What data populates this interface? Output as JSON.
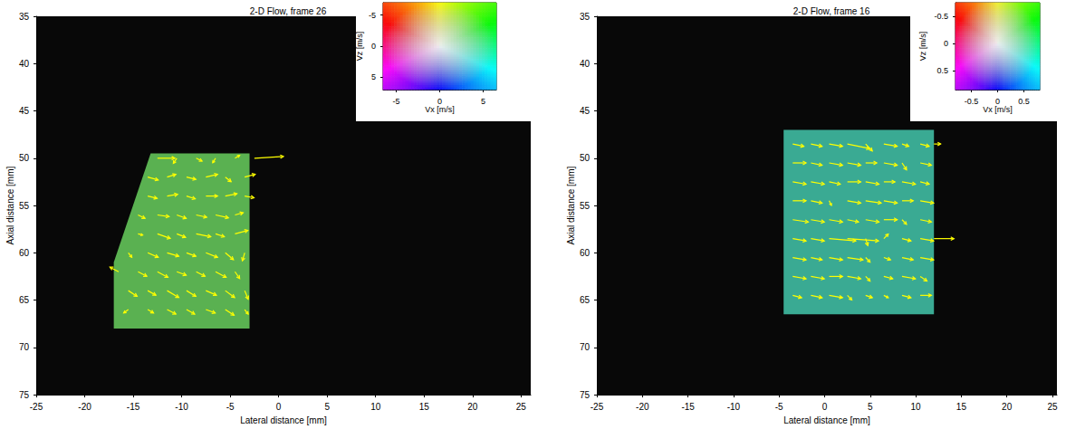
{
  "chart_data": [
    {
      "type": "vector_field",
      "title": "2-D Flow, frame 26",
      "x_label": "Lateral distance [mm]",
      "y_label": "Axial distance [mm]",
      "xlim": [
        -25,
        26
      ],
      "ylim": [
        35,
        75
      ],
      "xticks": [
        -25,
        -20,
        -15,
        -10,
        -5,
        0,
        5,
        10,
        15,
        20,
        25
      ],
      "yticks": [
        35,
        40,
        45,
        50,
        55,
        60,
        65,
        70,
        75
      ],
      "grid": false,
      "roi": {
        "x": [
          -13.2,
          -3,
          -3,
          -17,
          -17
        ],
        "z": [
          49.5,
          49.5,
          68,
          68,
          61
        ],
        "color": "#62c058"
      },
      "series": [
        {
          "type": "vector",
          "color": "#ffff00",
          "values": [
            [
              -12.5,
              50,
              3,
              0
            ],
            [
              -10.5,
              50,
              -0.6,
              0.9
            ],
            [
              -8.5,
              50,
              1,
              0.5
            ],
            [
              -6.5,
              50,
              -0.5,
              0.8
            ],
            [
              -4.5,
              50,
              0.8,
              -0.5
            ],
            [
              -2.5,
              50,
              5,
              -0.3
            ],
            [
              -13.5,
              52,
              1.8,
              0.5
            ],
            [
              -11.5,
              52,
              1.5,
              -0.5
            ],
            [
              -9.5,
              52,
              1.6,
              0.4
            ],
            [
              -7.5,
              52,
              2,
              -0.5
            ],
            [
              -5.5,
              52,
              1,
              0.8
            ],
            [
              -3.5,
              52,
              1.8,
              -0.5
            ],
            [
              -13.5,
              54,
              1.6,
              0.4
            ],
            [
              -11.5,
              54,
              1.8,
              -0.3
            ],
            [
              -9.5,
              54,
              1.5,
              0.5
            ],
            [
              -7.5,
              54,
              2,
              0
            ],
            [
              -5.5,
              54,
              2,
              -0.4
            ],
            [
              -3.5,
              54,
              1.6,
              0.3
            ],
            [
              -14.5,
              56,
              1.2,
              0.6
            ],
            [
              -12.5,
              56,
              2,
              0.3
            ],
            [
              -10.5,
              56,
              1.6,
              0.6
            ],
            [
              -8.5,
              56,
              1.8,
              0.4
            ],
            [
              -6.5,
              56,
              2.2,
              0.5
            ],
            [
              -4.5,
              56,
              1.4,
              -0.4
            ],
            [
              -14.5,
              58,
              0.8,
              0.2
            ],
            [
              -12.5,
              58,
              2.2,
              0.8
            ],
            [
              -10.5,
              58,
              1.5,
              0.6
            ],
            [
              -8.5,
              58,
              2.5,
              0.5
            ],
            [
              -6.5,
              58,
              1.5,
              0.5
            ],
            [
              -4.5,
              58,
              2.2,
              -0.6
            ],
            [
              -15.5,
              60,
              0.6,
              0.8
            ],
            [
              -13.5,
              60,
              1.8,
              0.8
            ],
            [
              -11.5,
              60,
              2,
              0.6
            ],
            [
              -9.5,
              60,
              1.6,
              0.6
            ],
            [
              -7.5,
              60,
              2,
              0.8
            ],
            [
              -5.5,
              60,
              1.4,
              1.2
            ],
            [
              -3.5,
              60,
              -0.4,
              1.4
            ],
            [
              -16.5,
              62,
              -1.5,
              -0.8
            ],
            [
              -14.5,
              62,
              1.5,
              0.8
            ],
            [
              -12.5,
              62,
              1.8,
              1
            ],
            [
              -10.5,
              62,
              1.6,
              0.6
            ],
            [
              -8.5,
              62,
              1.5,
              0.8
            ],
            [
              -6.5,
              62,
              1.8,
              1
            ],
            [
              -4.5,
              62,
              0.8,
              1.2
            ],
            [
              -15.5,
              64,
              1.5,
              1
            ],
            [
              -13.5,
              64,
              1.4,
              0.8
            ],
            [
              -11.5,
              64,
              2,
              1.2
            ],
            [
              -9.5,
              64,
              1.6,
              1
            ],
            [
              -7.5,
              64,
              1.8,
              0.8
            ],
            [
              -5.5,
              64,
              1.6,
              1.2
            ],
            [
              -3.5,
              64,
              0.6,
              1.5
            ],
            [
              -15.5,
              66,
              -0.8,
              0.6
            ],
            [
              -13.5,
              66,
              1,
              0.6
            ],
            [
              -11.5,
              66,
              1.5,
              0.8
            ],
            [
              -9.5,
              66,
              1.4,
              0.8
            ],
            [
              -7.5,
              66,
              1.6,
              0.6
            ],
            [
              -5.5,
              66,
              1.5,
              1
            ],
            [
              -3.5,
              66,
              0.6,
              0.8
            ]
          ]
        }
      ],
      "color_wheel": {
        "x_label": "Vx [m/s]",
        "y_label": "Vz [m/s]",
        "xlim": [
          -6.5,
          6.5
        ],
        "ylim": [
          -7,
          7
        ],
        "xticks": [
          -5,
          0,
          5
        ],
        "yticks": [
          -5,
          0,
          5
        ]
      }
    },
    {
      "type": "vector_field",
      "title": "2-D Flow, frame 16",
      "x_label": "Lateral distance [mm]",
      "y_label": "Axial distance [mm]",
      "xlim": [
        -25,
        25.5
      ],
      "ylim": [
        35,
        75
      ],
      "xticks": [
        -25,
        -20,
        -15,
        -10,
        -5,
        0,
        5,
        10,
        15,
        20,
        25
      ],
      "yticks": [
        35,
        40,
        45,
        50,
        55,
        60,
        65,
        70,
        75
      ],
      "grid": false,
      "roi": {
        "x": [
          -4.5,
          12,
          12,
          -4.5
        ],
        "z": [
          47,
          47,
          66.5,
          66.5
        ],
        "color": "#3fb8a0"
      },
      "series": [
        {
          "type": "vector",
          "color": "#ffff00",
          "values": [
            [
              -3.5,
              48.5,
              0.25,
              0.05
            ],
            [
              -1.5,
              48.5,
              0.25,
              0.05
            ],
            [
              0.5,
              48.5,
              0.3,
              0.05
            ],
            [
              2.5,
              48.5,
              0.5,
              0.1
            ],
            [
              4.5,
              48.5,
              0.15,
              0.15
            ],
            [
              6.5,
              48.5,
              0.3,
              0.05
            ],
            [
              8.5,
              48.5,
              0.15,
              0.05
            ],
            [
              10.5,
              48.5,
              0.2,
              0.05
            ],
            [
              12,
              48.5,
              0.15,
              0
            ],
            [
              -3.5,
              50.5,
              0.3,
              0
            ],
            [
              -1.5,
              50.5,
              0.25,
              0.05
            ],
            [
              0.5,
              50.5,
              0.3,
              0.05
            ],
            [
              2.5,
              50.5,
              0.3,
              0.05
            ],
            [
              4.5,
              50.5,
              0.25,
              0
            ],
            [
              6.5,
              50.5,
              0.3,
              0.05
            ],
            [
              8.5,
              50.5,
              0.1,
              0.15
            ],
            [
              10.5,
              50.5,
              0.25,
              0.05
            ],
            [
              -3.5,
              52.5,
              0.3,
              0.05
            ],
            [
              -1.5,
              52.5,
              0.3,
              0.05
            ],
            [
              0.5,
              52.5,
              0.25,
              0.05
            ],
            [
              2.5,
              52.5,
              0.3,
              0
            ],
            [
              4.5,
              52.5,
              0.3,
              0.05
            ],
            [
              6.5,
              52.5,
              0.25,
              0
            ],
            [
              8.5,
              52.5,
              0.3,
              0.05
            ],
            [
              10.5,
              52.5,
              0.2,
              0.05
            ],
            [
              -3.5,
              54.5,
              0.3,
              0
            ],
            [
              -1.5,
              54.5,
              0.25,
              0.05
            ],
            [
              0.5,
              54.5,
              0.05,
              0.1
            ],
            [
              2.5,
              54.5,
              0.3,
              0.05
            ],
            [
              4.5,
              54.5,
              0.35,
              0.05
            ],
            [
              6.5,
              54.5,
              0.3,
              0.05
            ],
            [
              8.5,
              54.5,
              0.25,
              0
            ],
            [
              10.5,
              54.5,
              0.3,
              0.05
            ],
            [
              -3.5,
              56.5,
              0.35,
              0.05
            ],
            [
              -1.5,
              56.5,
              0.3,
              0.05
            ],
            [
              0.5,
              56.5,
              0.3,
              0.05
            ],
            [
              2.5,
              56.5,
              0.25,
              0.05
            ],
            [
              4.5,
              56.5,
              0.3,
              0.05
            ],
            [
              6.5,
              56.5,
              0.3,
              0
            ],
            [
              8.5,
              56.5,
              0.1,
              0.1
            ],
            [
              10.5,
              56.5,
              0.25,
              0.05
            ],
            [
              -3.5,
              58.5,
              0.3,
              0.05
            ],
            [
              -1.5,
              58.5,
              0.3,
              0.05
            ],
            [
              0.5,
              58.5,
              0.6,
              0.05
            ],
            [
              2.5,
              58.5,
              0.7,
              0.05
            ],
            [
              4.5,
              58.5,
              0.05,
              0.15
            ],
            [
              6.5,
              58.5,
              0.1,
              -0.1
            ],
            [
              8.5,
              58.5,
              0.2,
              0.05
            ],
            [
              10.5,
              58.5,
              0.3,
              0.05
            ],
            [
              12,
              58.5,
              0.45,
              0
            ],
            [
              -3.5,
              60.5,
              0.3,
              0.05
            ],
            [
              -1.5,
              60.5,
              0.25,
              0.05
            ],
            [
              0.5,
              60.5,
              0.3,
              0.05
            ],
            [
              2.5,
              60.5,
              0.35,
              0.05
            ],
            [
              4.5,
              60.5,
              0.1,
              0.1
            ],
            [
              6.5,
              60.5,
              0.15,
              0.05
            ],
            [
              8.5,
              60.5,
              0.25,
              0.05
            ],
            [
              10.5,
              60.5,
              0.3,
              0.05
            ],
            [
              -3.5,
              62.5,
              0.3,
              0.05
            ],
            [
              -1.5,
              62.5,
              0.3,
              0.05
            ],
            [
              0.5,
              62.5,
              0.3,
              0
            ],
            [
              2.5,
              62.5,
              0.3,
              0.05
            ],
            [
              4.5,
              62.5,
              0.1,
              0.1
            ],
            [
              6.5,
              62.5,
              0.2,
              0.05
            ],
            [
              8.5,
              62.5,
              0.3,
              0.05
            ],
            [
              10.5,
              62.5,
              0.15,
              0.1
            ],
            [
              -3.5,
              64.5,
              0.2,
              0.05
            ],
            [
              -1.5,
              64.5,
              0.25,
              0.05
            ],
            [
              0.5,
              64.5,
              0.3,
              0.05
            ],
            [
              2.5,
              64.5,
              0.1,
              0.1
            ],
            [
              4.5,
              64.5,
              0.15,
              0.05
            ],
            [
              6.5,
              64.5,
              0.1,
              0.05
            ],
            [
              8.5,
              64.5,
              0.2,
              0.05
            ],
            [
              10.5,
              64.5,
              0.25,
              0
            ]
          ]
        }
      ],
      "color_wheel": {
        "x_label": "Vx [m/s]",
        "y_label": "Vz [m/s]",
        "xlim": [
          -0.8,
          0.8
        ],
        "ylim": [
          -0.75,
          0.85
        ],
        "xticks": [
          -0.5,
          0,
          0.5
        ],
        "yticks": [
          -0.5,
          0,
          0.5
        ]
      }
    }
  ]
}
